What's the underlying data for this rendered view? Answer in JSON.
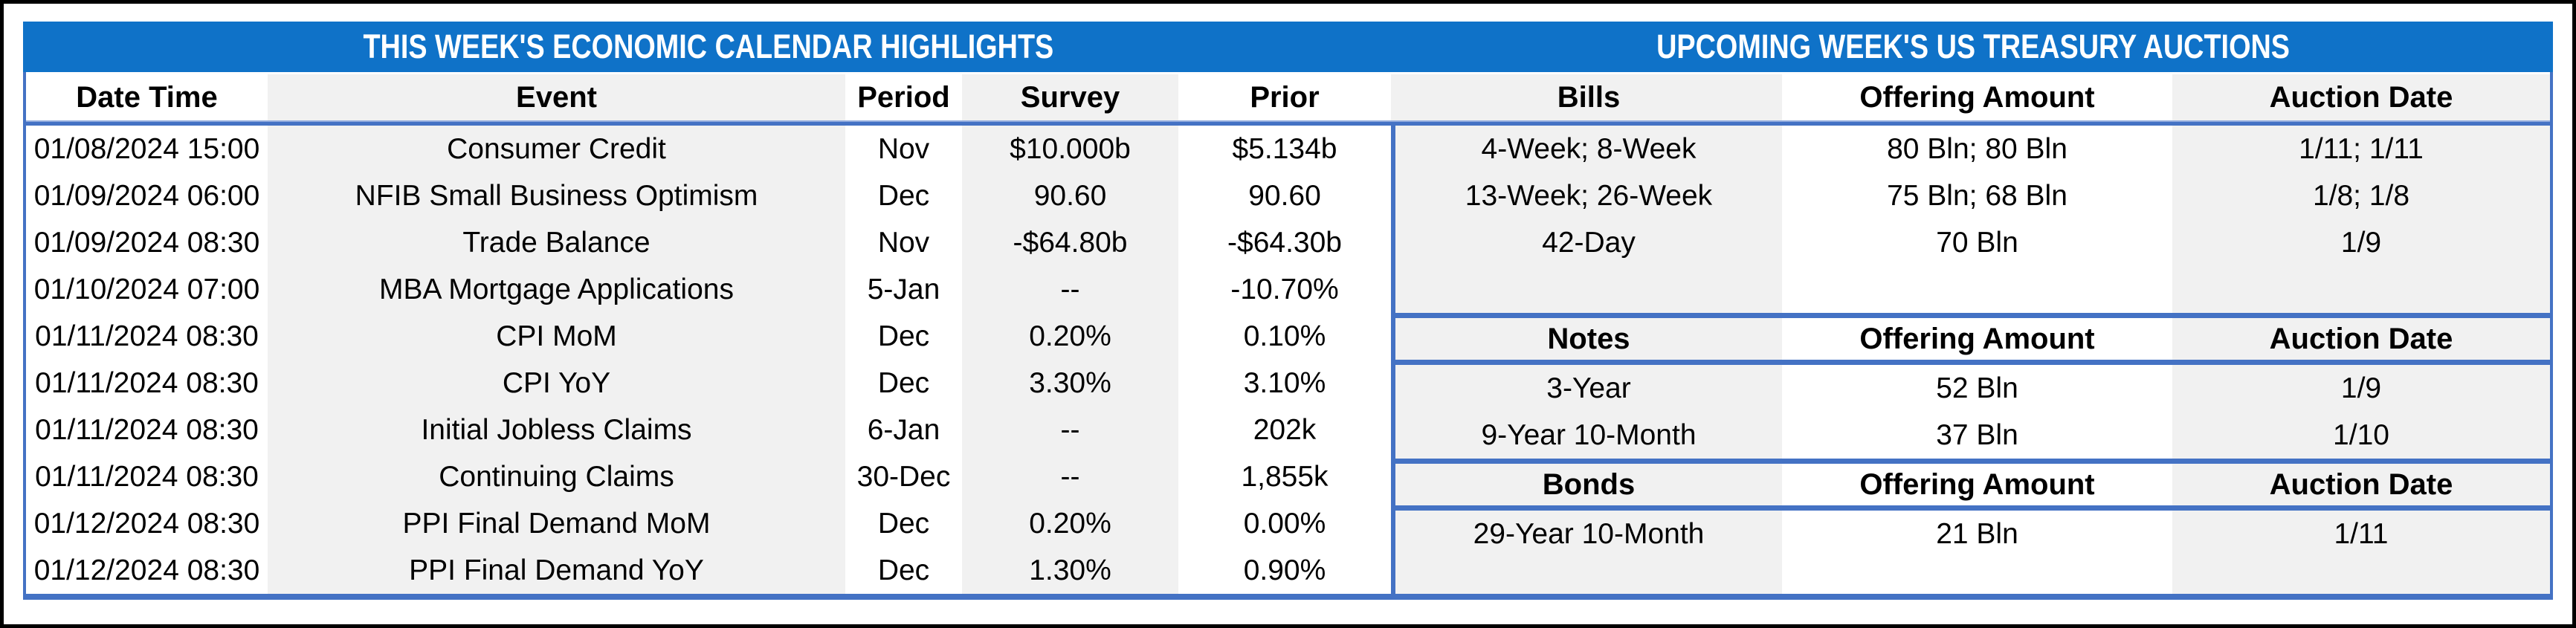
{
  "left_table": {
    "title": "THIS WEEK'S ECONOMIC CALENDAR HIGHLIGHTS",
    "columns": [
      "Date Time",
      "Event",
      "Period",
      "Survey",
      "Prior"
    ],
    "rows": [
      [
        "01/08/2024 15:00",
        "Consumer Credit",
        "Nov",
        "$10.000b",
        "$5.134b"
      ],
      [
        "01/09/2024 06:00",
        "NFIB Small Business Optimism",
        "Dec",
        "90.60",
        "90.60"
      ],
      [
        "01/09/2024 08:30",
        "Trade Balance",
        "Nov",
        "-$64.80b",
        "-$64.30b"
      ],
      [
        "01/10/2024 07:00",
        "MBA Mortgage Applications",
        "5-Jan",
        "--",
        "-10.70%"
      ],
      [
        "01/11/2024 08:30",
        "CPI MoM",
        "Dec",
        "0.20%",
        "0.10%"
      ],
      [
        "01/11/2024 08:30",
        "CPI YoY",
        "Dec",
        "3.30%",
        "3.10%"
      ],
      [
        "01/11/2024 08:30",
        "Initial Jobless Claims",
        "6-Jan",
        "--",
        "202k"
      ],
      [
        "01/11/2024 08:30",
        "Continuing Claims",
        "30-Dec",
        "--",
        "1,855k"
      ],
      [
        "01/12/2024 08:30",
        "PPI Final Demand MoM",
        "Dec",
        "0.20%",
        "0.00%"
      ],
      [
        "01/12/2024 08:30",
        "PPI Final Demand YoY",
        "Dec",
        "1.30%",
        "0.90%"
      ]
    ]
  },
  "right_table": {
    "title": "UPCOMING WEEK'S US TREASURY AUCTIONS",
    "sections": [
      {
        "name": "Bills",
        "header": [
          "Bills",
          "Offering Amount",
          "Auction Date"
        ],
        "rows": [
          [
            "4-Week; 8-Week",
            "80 Bln; 80 Bln",
            "1/11; 1/11"
          ],
          [
            "13-Week; 26-Week",
            "75 Bln; 68 Bln",
            "1/8; 1/8"
          ],
          [
            "42-Day",
            "70 Bln",
            "1/9"
          ]
        ]
      },
      {
        "name": "Notes",
        "header": [
          "Notes",
          "Offering Amount",
          "Auction Date"
        ],
        "rows": [
          [
            "3-Year",
            "52 Bln",
            "1/9"
          ],
          [
            "9-Year 10-Month",
            "37 Bln",
            "1/10"
          ]
        ]
      },
      {
        "name": "Bonds",
        "header": [
          "Bonds",
          "Offering Amount",
          "Auction Date"
        ],
        "rows": [
          [
            "29-Year 10-Month",
            "21 Bln",
            "1/11"
          ]
        ]
      }
    ]
  },
  "colors": {
    "title_bar_blue": "#0F72C8",
    "border_blue": "#4472C4",
    "alt_column_fill": "#F1F1F1",
    "frame_border": "#000000",
    "title_text": "#FFFFFF",
    "body_text": "#000000"
  }
}
